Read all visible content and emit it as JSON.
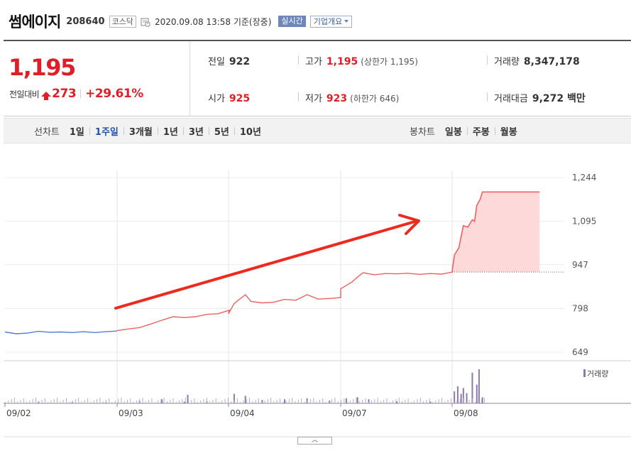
{
  "header": {
    "name": "썸에이지",
    "code": "208640",
    "market": "코스닥",
    "timestamp": "2020.09.08 13:58  기준(장중)",
    "realtime_label": "실시간",
    "company_label": "기업개요"
  },
  "quote": {
    "price": "1,195",
    "change_label": "전일대비",
    "change_value": "273",
    "change_pct": "+29.61%",
    "prev_close": {
      "label": "전일",
      "value": "922"
    },
    "open": {
      "label": "시가",
      "value": "925"
    },
    "high": {
      "label": "고가",
      "value": "1,195",
      "note": "(상한가 1,195)"
    },
    "low": {
      "label": "저가",
      "value": "923",
      "note": "(하한가 646)"
    },
    "volume": {
      "label": "거래량",
      "value": "8,347,178"
    },
    "turnover": {
      "label": "거래대금",
      "value": "9,272 백만"
    }
  },
  "tabs": {
    "line_title": "선차트",
    "line_periods": [
      "1일",
      "1주일",
      "3개월",
      "1년",
      "3년",
      "5년",
      "10년"
    ],
    "line_active": "1주일",
    "candle_title": "봉차트",
    "candle_periods": [
      "일봉",
      "주봉",
      "월봉"
    ]
  },
  "chart_data": {
    "type": "line",
    "y_ticks": [
      "1,244",
      "1,095",
      "947",
      "798",
      "649"
    ],
    "ylim": [
      649,
      1244
    ],
    "x_ticks": [
      "09/02",
      "09/03",
      "09/04",
      "09/07",
      "09/08"
    ],
    "prev_close": 922,
    "volume_label": "거래량",
    "colors": {
      "past": "#4f7fd8",
      "today": "#f06060",
      "fill": "#fdd9d9",
      "volume": "#8c7aa8",
      "annotation_arrow": "#ee2a1f"
    },
    "series": [
      {
        "values": [
          {
            "d": 0,
            "t": 0.0,
            "v": 718
          },
          {
            "d": 0,
            "t": 0.1,
            "v": 712
          },
          {
            "d": 0,
            "t": 0.2,
            "v": 714
          },
          {
            "d": 0,
            "t": 0.3,
            "v": 720
          },
          {
            "d": 0,
            "t": 0.4,
            "v": 717
          },
          {
            "d": 0,
            "t": 0.5,
            "v": 718
          },
          {
            "d": 0,
            "t": 0.6,
            "v": 716
          },
          {
            "d": 0,
            "t": 0.7,
            "v": 719
          },
          {
            "d": 0,
            "t": 0.8,
            "v": 716
          },
          {
            "d": 0,
            "t": 0.9,
            "v": 719
          },
          {
            "d": 0,
            "t": 1.0,
            "v": 721
          },
          {
            "d": 1,
            "t": 0.0,
            "v": 723
          },
          {
            "d": 1,
            "t": 0.1,
            "v": 728
          },
          {
            "d": 1,
            "t": 0.2,
            "v": 733
          },
          {
            "d": 1,
            "t": 0.3,
            "v": 745
          },
          {
            "d": 1,
            "t": 0.4,
            "v": 758
          },
          {
            "d": 1,
            "t": 0.5,
            "v": 770
          },
          {
            "d": 1,
            "t": 0.6,
            "v": 767
          },
          {
            "d": 1,
            "t": 0.7,
            "v": 770
          },
          {
            "d": 1,
            "t": 0.8,
            "v": 778
          },
          {
            "d": 1,
            "t": 0.9,
            "v": 780
          },
          {
            "d": 1,
            "t": 1.0,
            "v": 792
          },
          {
            "d": 2,
            "t": 0.0,
            "v": 780
          },
          {
            "d": 2,
            "t": 0.05,
            "v": 815
          },
          {
            "d": 2,
            "t": 0.1,
            "v": 830
          },
          {
            "d": 2,
            "t": 0.15,
            "v": 845
          },
          {
            "d": 2,
            "t": 0.2,
            "v": 822
          },
          {
            "d": 2,
            "t": 0.3,
            "v": 817
          },
          {
            "d": 2,
            "t": 0.4,
            "v": 819
          },
          {
            "d": 2,
            "t": 0.5,
            "v": 829
          },
          {
            "d": 2,
            "t": 0.6,
            "v": 826
          },
          {
            "d": 2,
            "t": 0.7,
            "v": 845
          },
          {
            "d": 2,
            "t": 0.8,
            "v": 830
          },
          {
            "d": 2,
            "t": 0.9,
            "v": 832
          },
          {
            "d": 2,
            "t": 1.0,
            "v": 835
          },
          {
            "d": 3,
            "t": 0.0,
            "v": 865
          },
          {
            "d": 3,
            "t": 0.1,
            "v": 888
          },
          {
            "d": 3,
            "t": 0.15,
            "v": 905
          },
          {
            "d": 3,
            "t": 0.2,
            "v": 920
          },
          {
            "d": 3,
            "t": 0.3,
            "v": 913
          },
          {
            "d": 3,
            "t": 0.4,
            "v": 917
          },
          {
            "d": 3,
            "t": 0.5,
            "v": 916
          },
          {
            "d": 3,
            "t": 0.6,
            "v": 918
          },
          {
            "d": 3,
            "t": 0.7,
            "v": 914
          },
          {
            "d": 3,
            "t": 0.8,
            "v": 917
          },
          {
            "d": 3,
            "t": 0.9,
            "v": 915
          },
          {
            "d": 3,
            "t": 1.0,
            "v": 922
          }
        ]
      },
      {
        "values": [
          {
            "t": 0.0,
            "v": 925
          },
          {
            "t": 0.02,
            "v": 980
          },
          {
            "t": 0.06,
            "v": 1005
          },
          {
            "t": 0.1,
            "v": 1080
          },
          {
            "t": 0.14,
            "v": 1075
          },
          {
            "t": 0.18,
            "v": 1100
          },
          {
            "t": 0.2,
            "v": 1095
          },
          {
            "t": 0.22,
            "v": 1150
          },
          {
            "t": 0.25,
            "v": 1170
          },
          {
            "t": 0.27,
            "v": 1195
          },
          {
            "t": 0.78,
            "v": 1195
          }
        ]
      }
    ],
    "volume": [
      {
        "d": 0,
        "t": 0.3,
        "v": 0.05
      },
      {
        "d": 0,
        "t": 0.6,
        "v": 0.04
      },
      {
        "d": 0,
        "t": 0.9,
        "v": 0.03
      },
      {
        "d": 1,
        "t": 0.2,
        "v": 0.08
      },
      {
        "d": 1,
        "t": 0.4,
        "v": 0.12
      },
      {
        "d": 1,
        "t": 0.6,
        "v": 0.05
      },
      {
        "d": 1,
        "t": 0.63,
        "v": 0.25
      },
      {
        "d": 1,
        "t": 0.8,
        "v": 0.06
      },
      {
        "d": 2,
        "t": 0.05,
        "v": 0.28
      },
      {
        "d": 2,
        "t": 0.15,
        "v": 0.22
      },
      {
        "d": 2,
        "t": 0.3,
        "v": 0.1
      },
      {
        "d": 2,
        "t": 0.5,
        "v": 0.12
      },
      {
        "d": 2,
        "t": 0.7,
        "v": 0.15
      },
      {
        "d": 2,
        "t": 0.9,
        "v": 0.08
      },
      {
        "d": 3,
        "t": 0.05,
        "v": 0.15
      },
      {
        "d": 3,
        "t": 0.15,
        "v": 0.18
      },
      {
        "d": 3,
        "t": 0.25,
        "v": 0.12
      },
      {
        "d": 3,
        "t": 0.5,
        "v": 0.06
      },
      {
        "d": 3,
        "t": 0.8,
        "v": 0.05
      },
      {
        "d": 4,
        "t": 0.02,
        "v": 0.35
      },
      {
        "d": 4,
        "t": 0.05,
        "v": 0.5
      },
      {
        "d": 4,
        "t": 0.08,
        "v": 0.28
      },
      {
        "d": 4,
        "t": 0.1,
        "v": 0.45
      },
      {
        "d": 4,
        "t": 0.13,
        "v": 0.3
      },
      {
        "d": 4,
        "t": 0.18,
        "v": 0.9
      },
      {
        "d": 4,
        "t": 0.22,
        "v": 0.55
      },
      {
        "d": 4,
        "t": 0.24,
        "v": 1.0
      },
      {
        "d": 4,
        "t": 0.27,
        "v": 0.18
      }
    ]
  }
}
